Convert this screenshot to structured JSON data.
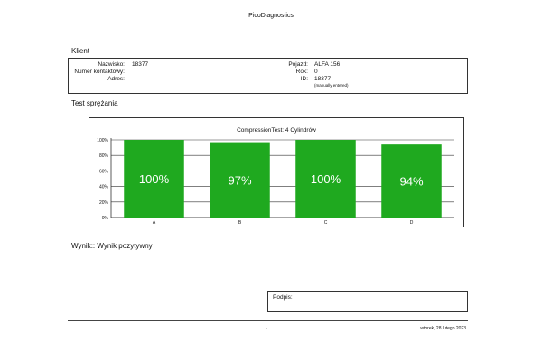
{
  "header": {
    "title": "PicoDiagnostics"
  },
  "client": {
    "section_title": "Klient",
    "fields_left": [
      {
        "label": "Nazwisko:",
        "value": "18377"
      },
      {
        "label": "Numer kontaktowy:",
        "value": ""
      },
      {
        "label": "Adres:",
        "value": ""
      }
    ],
    "fields_right": [
      {
        "label": "Pojazd:",
        "value": "ALFA 156"
      },
      {
        "label": "Rok:",
        "value": "0"
      },
      {
        "label": "ID:",
        "value": "18377"
      }
    ],
    "id_note": "(manually entered)"
  },
  "test": {
    "section_title": "Test sprężania",
    "result": "Wynik:: Wynik pozytywny"
  },
  "chart_data": {
    "type": "bar",
    "title": "CompressionTest: 4 Cylindrów",
    "categories": [
      "A",
      "B",
      "C",
      "D"
    ],
    "values": [
      100,
      97,
      100,
      94
    ],
    "value_labels": [
      "100%",
      "97%",
      "100%",
      "94%"
    ],
    "y_ticks": [
      "0%",
      "20%",
      "40%",
      "60%",
      "80%",
      "100%"
    ],
    "ylim": [
      0,
      100
    ],
    "xlabel": "",
    "ylabel": "",
    "grid": true,
    "bar_color": "#1fa91f",
    "label_color": "#ffffff"
  },
  "signature": {
    "label": "Podpis:"
  },
  "footer": {
    "center": "-",
    "date": "wtorek, 28 lutego 2023"
  }
}
